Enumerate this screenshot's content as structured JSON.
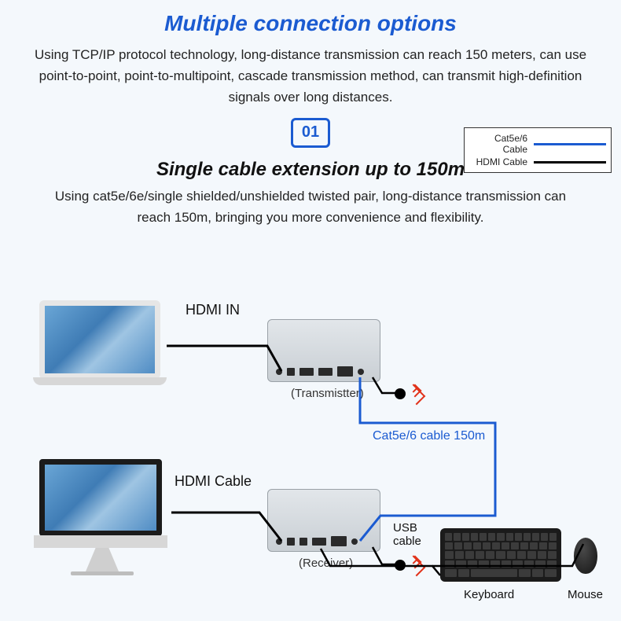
{
  "title": "Multiple connection options",
  "description": "Using TCP/IP protocol technology, long-distance transmission can reach 150 meters, can use point-to-point, point-to-multipoint, cascade transmission method, can transmit high-definition signals over long distances.",
  "badge": "01",
  "subtitle": "Single cable extension up to 150m",
  "subdesc": "Using cat5e/6e/single shielded/unshielded twisted pair, long-distance transmission can reach 150m, bringing you more convenience and flexibility.",
  "legend": {
    "cat_label": "Cat5e/6 Cable",
    "hdmi_label": "HDMI Cable",
    "cat_color": "#1b5bd1",
    "hdmi_color": "#000000"
  },
  "labels": {
    "hdmi_in": "HDMI IN",
    "hdmi_cable": "HDMI Cable",
    "cat_cable": "Cat5e/6 cable 150m",
    "usb_cable": "USB cable",
    "transmitter": "(Transmistter)",
    "receiver": "(Receiver)",
    "keyboard": "Keyboard",
    "mouse": "Mouse"
  },
  "colors": {
    "bg": "#f4f8fc",
    "accent": "#1b5bd1",
    "text": "#232323",
    "hdmi_wire": "#000000",
    "cat_wire": "#1b5bd1",
    "usb_wire": "#000000",
    "ir_red": "#e1321a"
  }
}
